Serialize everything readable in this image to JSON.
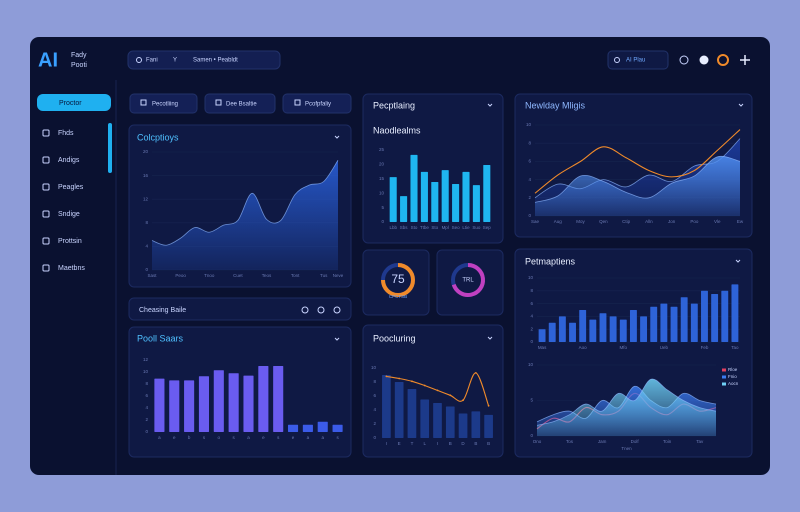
{
  "app": {
    "logo": "AI",
    "name_lines": [
      "Fady",
      "Pooti"
    ]
  },
  "search": {
    "items": [
      "Fani",
      "Y",
      "Samen • Peabldt"
    ]
  },
  "account": {
    "label": "AI Plau"
  },
  "sidebar": {
    "items": [
      "Proctor",
      "Fhds",
      "Andigs",
      "Peagles",
      "Sndige",
      "Prottsin",
      "Maetbns"
    ],
    "active": 0
  },
  "toolbar": {
    "buttons": [
      "Pecotliing",
      "Dee Bsaltie",
      "Pcofpfaliy"
    ],
    "filter": "Cheasing Baile"
  },
  "panels": [
    {
      "title": "Colcptioys",
      "charts": [
        {
          "type": "area",
          "color": "#2a62e0",
          "categories": [
            "Sast",
            null,
            "Peoo",
            null,
            "Tnoo",
            null,
            "Cuet",
            null,
            "Teos",
            null,
            "Tont",
            null,
            "Tus",
            "Neve"
          ],
          "values": [
            5,
            4.2,
            5.4,
            7.2,
            6.4,
            7.6,
            8.4,
            13,
            8.6,
            8.4,
            12.8,
            14.4,
            15,
            18.6
          ],
          "ylim": [
            0,
            20
          ],
          "yticks": [
            0,
            4,
            8,
            12,
            16,
            20
          ],
          "grid": true
        }
      ]
    },
    {
      "title": "Pooll Saars",
      "charts": [
        {
          "type": "bar",
          "color": "#3b5be8",
          "colors": [
            "#6a5cf0",
            "#6a5cf0",
            "#6a5cf0",
            "#6a5cf0",
            "#6a5cf0",
            "#6a5cf0",
            "#6a5cf0",
            "#6a5cf0",
            "#6a5cf0",
            "#3b5be8",
            "#3b5be8",
            "#3b5be8",
            "#3b5be8"
          ],
          "categories": [
            "a",
            "e",
            "b",
            "s",
            "o",
            "s",
            "a",
            "e",
            "s",
            "e",
            "a",
            "a",
            "s"
          ],
          "values": [
            8.9,
            8.6,
            8.6,
            9.3,
            10.3,
            9.8,
            9.4,
            11,
            11,
            1.2,
            1.2,
            1.7,
            1.2
          ],
          "ylim": [
            0,
            12
          ],
          "yticks": [
            0,
            2,
            4,
            6,
            8,
            10,
            12
          ],
          "grid": false
        }
      ]
    },
    {
      "title": "Pecptlaing",
      "subtitle": "Naodlealms",
      "charts": [
        {
          "type": "bar",
          "color": "#1fb6f0",
          "categories": [
            "Lbb",
            "Sbs",
            "Sto",
            "Ttbe",
            "Sto",
            "Mpl",
            "Seo",
            "Ltie",
            "Suo",
            "Sep"
          ],
          "values": [
            15.6,
            9,
            23.3,
            17.4,
            13.9,
            18,
            13.2,
            17.4,
            12.8,
            19.8
          ],
          "ylim": [
            0,
            25
          ],
          "yticks": [
            0,
            5,
            10,
            15,
            20,
            25
          ],
          "grid": false
        }
      ]
    },
    {
      "charts": [
        {
          "type": "gauge",
          "value": 75,
          "label": "CPCTSB",
          "ylim": [
            0,
            100
          ],
          "color": "#f08a2a",
          "track": "#2a4fc0"
        }
      ]
    },
    {
      "charts": [
        {
          "type": "gauge",
          "value": 70,
          "label": "TRL",
          "ylim": [
            0,
            100
          ],
          "color": "#c040c0",
          "track": "#2a4fc0"
        }
      ]
    },
    {
      "title": "Poocluring",
      "charts": [
        {
          "type": "combo",
          "categories": [
            "I",
            "E",
            "T",
            "L",
            "I",
            "B",
            "D",
            "B",
            "B"
          ],
          "series": [
            {
              "kind": "bar",
              "color": "#1c3a8a",
              "values": [
                9,
                8,
                7,
                5.5,
                5,
                4.5,
                3.5,
                3.8,
                3.3
              ]
            },
            {
              "kind": "line",
              "color": "#f08a2a",
              "values": [
                8.8,
                8.5,
                8.1,
                7.5,
                6.8,
                6.1,
                5.4,
                9.3,
                4.6
              ]
            }
          ],
          "ylim": [
            0,
            10
          ],
          "yticks": [
            0,
            2,
            4,
            6,
            8,
            10
          ],
          "grid": false
        }
      ]
    },
    {
      "title": "Newlday Mligis",
      "charts": [
        {
          "type": "area",
          "categories": [
            "Sae",
            "Aug",
            "Moy",
            "Qen",
            "Ctip",
            "Alln",
            "Jon",
            "Poo",
            "Vle",
            "Ew"
          ],
          "series": [
            {
              "color": "#1d3fa8",
              "fill": true,
              "values": [
                2,
                3.5,
                3,
                4,
                3.2,
                4.5,
                3.8,
                5.5,
                6,
                8.5
              ]
            },
            {
              "color": "#4f8ef0",
              "fill": true,
              "values": [
                1.5,
                2.2,
                4.4,
                3.8,
                2.6,
                2,
                3.6,
                4.4,
                6.5,
                6
              ]
            },
            {
              "color": "#f08a2a",
              "fill": false,
              "values": [
                2.5,
                4.5,
                6,
                7.6,
                6.4,
                5,
                4.3,
                5,
                7.2,
                9.5
              ]
            }
          ],
          "ylim": [
            0,
            10
          ],
          "yticks": [
            0,
            2,
            4,
            6,
            8,
            10
          ],
          "grid": true
        }
      ]
    },
    {
      "title": "Petmaptiens",
      "charts": [
        {
          "type": "bar",
          "color": "#2e63d8",
          "categories": [
            "Mas",
            null,
            null,
            null,
            "Aoo",
            null,
            null,
            null,
            "Mfo",
            null,
            null,
            null,
            "Ueb",
            null,
            null,
            null,
            "Feb",
            null,
            null,
            "Tao"
          ],
          "values": [
            2,
            3,
            4,
            3,
            5,
            3.5,
            4.5,
            4,
            3.5,
            5,
            4,
            5.5,
            6,
            5.5,
            7,
            6,
            8,
            7.5,
            8,
            9
          ],
          "ylim": [
            0,
            10
          ],
          "yticks": [
            0,
            2,
            4,
            6,
            8,
            10
          ],
          "grid": true
        },
        {
          "type": "line",
          "xlabel": "Tnen",
          "legend": "right",
          "categories": [
            "Ono",
            null,
            "Tos",
            null,
            "Jam",
            null,
            "Dolf",
            null,
            "Toin",
            null,
            "Tav",
            null
          ],
          "series": [
            {
              "name": "Rloe",
              "color": "#e04060",
              "fill": false,
              "values": [
                1,
                2.5,
                2,
                4,
                3,
                3.5,
                6,
                4,
                3,
                4.5,
                3.5,
                4
              ]
            },
            {
              "name": "Fnio",
              "color": "#3b7bf0",
              "fill": true,
              "values": [
                2,
                3,
                3.5,
                2.5,
                5,
                4,
                7,
                5,
                4,
                6,
                5,
                4.5
              ]
            },
            {
              "name": "Aocn",
              "color": "#6fd0f5",
              "fill": true,
              "values": [
                1.5,
                2,
                3,
                4.5,
                3.5,
                6,
                5,
                8,
                6.5,
                5,
                4,
                3.5
              ]
            }
          ],
          "ylim": [
            0,
            10
          ],
          "yticks": [
            0,
            5,
            10
          ],
          "grid": true
        }
      ]
    }
  ]
}
